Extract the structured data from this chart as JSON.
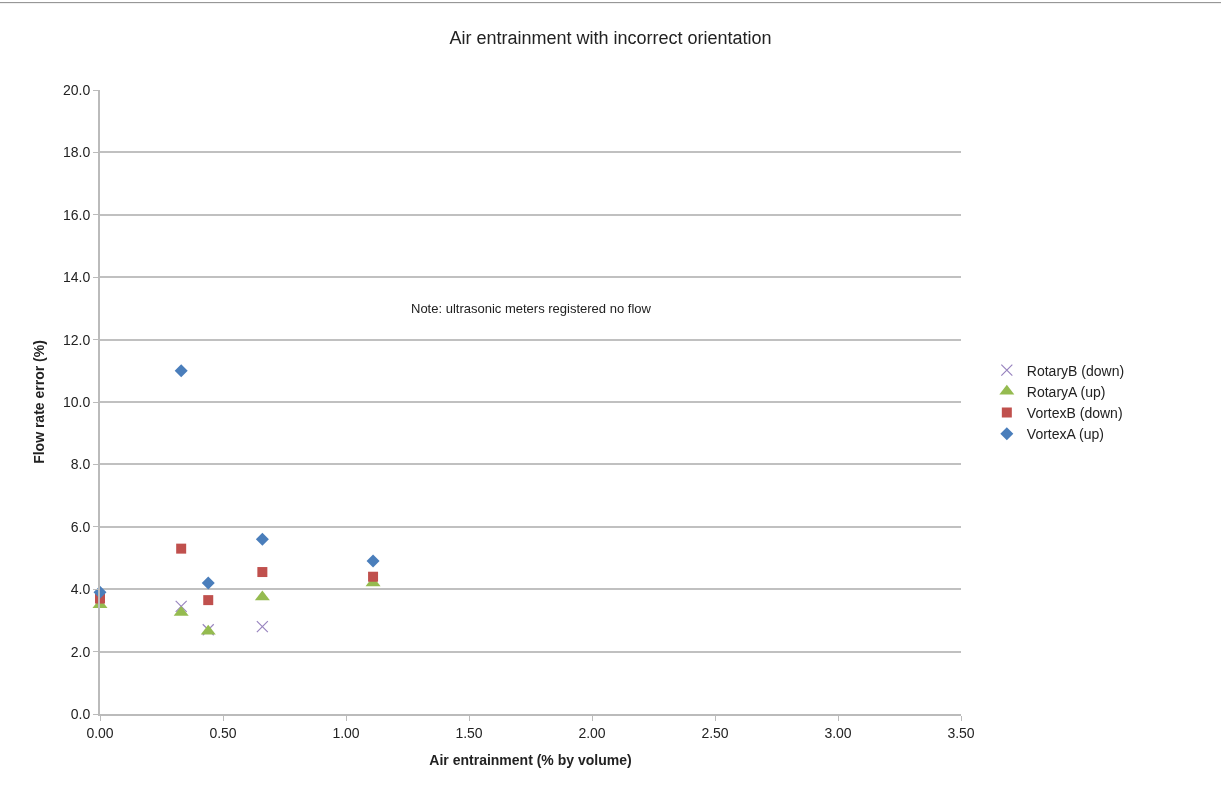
{
  "chart_data": {
    "type": "scatter",
    "title": "Air entrainment with incorrect orientation",
    "xlabel": "Air entrainment (% by volume)",
    "ylabel": "Flow rate error (%)",
    "annotations": [
      "Note: ultrasonic meters registered no flow"
    ],
    "xlim": [
      0,
      3.5
    ],
    "xticks": [
      {
        "value": 0,
        "label": "0.00"
      },
      {
        "value": 0.5,
        "label": "0.50"
      },
      {
        "value": 1,
        "label": "1.00"
      },
      {
        "value": 1.5,
        "label": "1.50"
      },
      {
        "value": 2,
        "label": "2.00"
      },
      {
        "value": 2.5,
        "label": "2.50"
      },
      {
        "value": 3,
        "label": "3.00"
      },
      {
        "value": 3.5,
        "label": "3.50"
      }
    ],
    "ylim": [
      0,
      20
    ],
    "yticks": [
      {
        "value": 0,
        "label": "0.0"
      },
      {
        "value": 2,
        "label": "2.0"
      },
      {
        "value": 4,
        "label": "4.0"
      },
      {
        "value": 6,
        "label": "6.0"
      },
      {
        "value": 8,
        "label": "8.0"
      },
      {
        "value": 10,
        "label": "10.0"
      },
      {
        "value": 12,
        "label": "12.0"
      },
      {
        "value": 14,
        "label": "14.0"
      },
      {
        "value": 16,
        "label": "16.0"
      },
      {
        "value": 18,
        "label": "18.0"
      },
      {
        "value": 20,
        "label": "20.0"
      }
    ],
    "grid": "y",
    "legend": "right",
    "x": [
      0,
      0.33,
      0.44,
      0.66,
      1.11
    ],
    "series": [
      {
        "name": "RotaryB (down)",
        "color": "#9a86c0",
        "marker": "cross",
        "values": [
          null,
          3.45,
          2.7,
          2.8,
          null
        ]
      },
      {
        "name": "RotaryA (up)",
        "color": "#95bb50",
        "marker": "triangle",
        "values": [
          3.5,
          3.25,
          2.65,
          3.75,
          4.2
        ]
      },
      {
        "name": "VortexB (down)",
        "color": "#c0504d",
        "marker": "square",
        "values": [
          3.7,
          5.3,
          3.65,
          4.55,
          4.4
        ]
      },
      {
        "name": "VortexA (up)",
        "color": "#4a7ebb",
        "marker": "diamond",
        "values": [
          3.9,
          11.0,
          4.2,
          5.6,
          4.9
        ]
      }
    ]
  }
}
